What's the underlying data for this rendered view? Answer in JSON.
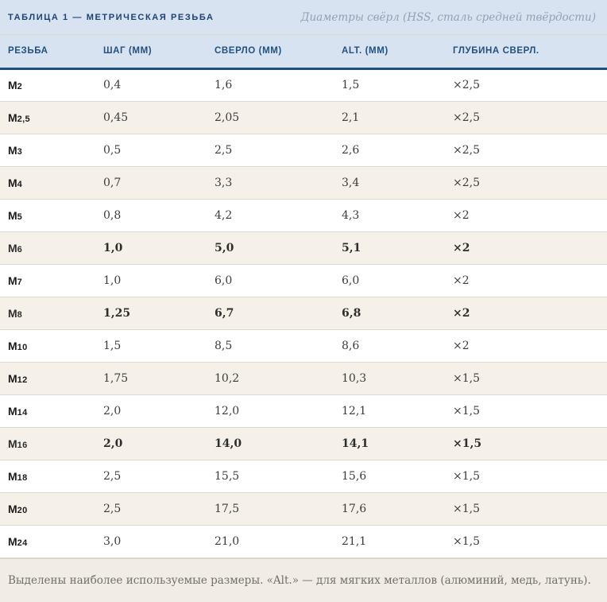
{
  "colors": {
    "header-bg": "#d8e3f1",
    "navy": "#1f4e79",
    "stripe": "#f5f1e8",
    "footer-bg": "#f1ede4",
    "title-text": "#1d4273",
    "header-text": "#205180",
    "subtitle-text": "#93a0b5"
  },
  "header": {
    "title": "ТАБЛИЦА 1 — МЕТРИЧЕСКАЯ РЕЗЬБА",
    "subtitle": "Диаметры свёрл (HSS, сталь средней твёрдости)"
  },
  "table": {
    "columns": [
      "РЕЗЬБА",
      "ШАГ (ММ)",
      "СВЕРЛО (ММ)",
      "ALT. (ММ)",
      "ГЛУБИНА СВЕРЛ."
    ],
    "rows": [
      {
        "thread": "M2",
        "pitch": "0,4",
        "drill": "1,6",
        "alt": "1,5",
        "depth": "×2,5",
        "highlight": false
      },
      {
        "thread": "M2,5",
        "pitch": "0,45",
        "drill": "2,05",
        "alt": "2,1",
        "depth": "×2,5",
        "highlight": false
      },
      {
        "thread": "M3",
        "pitch": "0,5",
        "drill": "2,5",
        "alt": "2,6",
        "depth": "×2,5",
        "highlight": false
      },
      {
        "thread": "M4",
        "pitch": "0,7",
        "drill": "3,3",
        "alt": "3,4",
        "depth": "×2,5",
        "highlight": false
      },
      {
        "thread": "M5",
        "pitch": "0,8",
        "drill": "4,2",
        "alt": "4,3",
        "depth": "×2",
        "highlight": false
      },
      {
        "thread": "M6",
        "pitch": "1,0",
        "drill": "5,0",
        "alt": "5,1",
        "depth": "×2",
        "highlight": true
      },
      {
        "thread": "M7",
        "pitch": "1,0",
        "drill": "6,0",
        "alt": "6,0",
        "depth": "×2",
        "highlight": false
      },
      {
        "thread": "M8",
        "pitch": "1,25",
        "drill": "6,7",
        "alt": "6,8",
        "depth": "×2",
        "highlight": true
      },
      {
        "thread": "M10",
        "pitch": "1,5",
        "drill": "8,5",
        "alt": "8,6",
        "depth": "×2",
        "highlight": false
      },
      {
        "thread": "M12",
        "pitch": "1,75",
        "drill": "10,2",
        "alt": "10,3",
        "depth": "×1,5",
        "highlight": false
      },
      {
        "thread": "M14",
        "pitch": "2,0",
        "drill": "12,0",
        "alt": "12,1",
        "depth": "×1,5",
        "highlight": false
      },
      {
        "thread": "M16",
        "pitch": "2,0",
        "drill": "14,0",
        "alt": "14,1",
        "depth": "×1,5",
        "highlight": true
      },
      {
        "thread": "M18",
        "pitch": "2,5",
        "drill": "15,5",
        "alt": "15,6",
        "depth": "×1,5",
        "highlight": false
      },
      {
        "thread": "M20",
        "pitch": "2,5",
        "drill": "17,5",
        "alt": "17,6",
        "depth": "×1,5",
        "highlight": false
      },
      {
        "thread": "M24",
        "pitch": "3,0",
        "drill": "21,0",
        "alt": "21,1",
        "depth": "×1,5",
        "highlight": false
      }
    ]
  },
  "footer": {
    "note": "Выделены наиболее используемые размеры. «Alt.» — для мягких металлов (алюминий, медь, латунь)."
  }
}
